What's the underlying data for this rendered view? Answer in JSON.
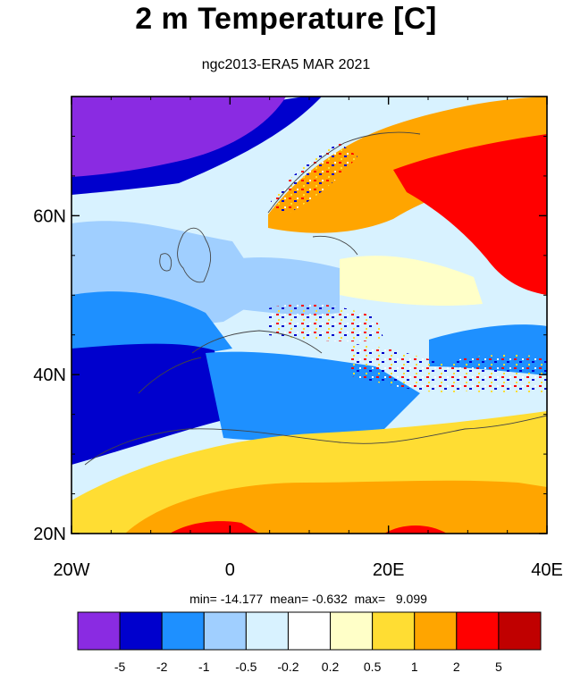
{
  "title": "2 m Temperature [C]",
  "subtitle": "ngc2013-ERA5 MAR 2021",
  "stats": {
    "min_label": "min=",
    "min": "-14.177",
    "mean_label": "mean=",
    "mean": "-0.632",
    "max_label": "max=",
    "max": "9.099"
  },
  "map": {
    "lon_range": [
      -20,
      40
    ],
    "lat_range": [
      20,
      75
    ],
    "lat_ticks": [
      {
        "value": 60,
        "label": "60N"
      },
      {
        "value": 40,
        "label": "40N"
      },
      {
        "value": 20,
        "label": "20N"
      }
    ],
    "lon_ticks": [
      {
        "value": -20,
        "label": "20W"
      },
      {
        "value": 0,
        "label": "0"
      },
      {
        "value": 20,
        "label": "20E"
      },
      {
        "value": 40,
        "label": "40E"
      }
    ]
  },
  "colorbar": {
    "colors": [
      "#8a2be2",
      "#0000cd",
      "#1e90ff",
      "#a0cfff",
      "#d8f2ff",
      "#ffffff",
      "#ffffc8",
      "#ffdd33",
      "#ffa500",
      "#ff0000",
      "#c00000"
    ],
    "labels": [
      "-5",
      "-2",
      "-1",
      "-0.5",
      "-0.2",
      "0.2",
      "0.5",
      "1",
      "2",
      "5"
    ]
  },
  "regions": [
    {
      "name": "arctic-cold-region",
      "color": "#8a2be2"
    },
    {
      "name": "north-atlantic-band",
      "color": "#0000cd"
    },
    {
      "name": "atlantic-light",
      "color": "#a0cfff"
    },
    {
      "name": "atlantic-pale",
      "color": "#d8f2ff"
    },
    {
      "name": "bay-of-biscay",
      "color": "#1e90ff"
    },
    {
      "name": "mediterranean-sea",
      "color": "#1e90ff"
    },
    {
      "name": "iberia-west-africa",
      "color": "#0000cd"
    },
    {
      "name": "sahara-warm",
      "color": "#ffa500"
    },
    {
      "name": "sahara-yellow",
      "color": "#ffdd33"
    },
    {
      "name": "sahara-hotspot",
      "color": "#ff0000"
    },
    {
      "name": "scandinavia-warm",
      "color": "#ffa500"
    },
    {
      "name": "russia-hot",
      "color": "#ff0000"
    },
    {
      "name": "eastern-europe-light",
      "color": "#ffffc8"
    },
    {
      "name": "central-europe",
      "color": "#d8f2ff"
    },
    {
      "name": "black-sea-region",
      "color": "#1e90ff"
    }
  ]
}
